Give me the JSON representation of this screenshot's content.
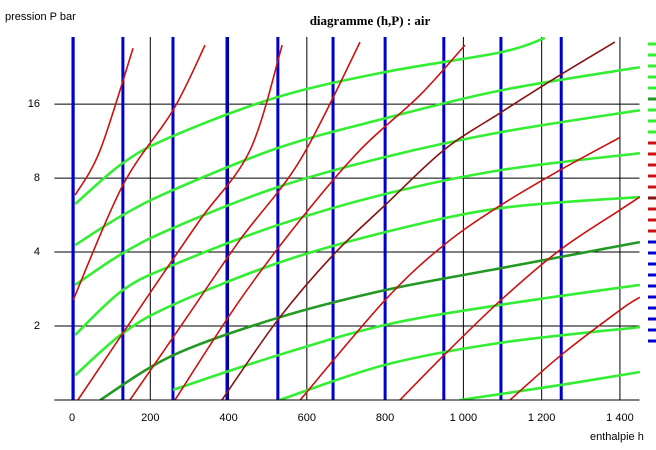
{
  "chart_data": {
    "type": "line",
    "title": "diagramme (h,P) : air",
    "y_label": "pression  P bar",
    "x_label": "enthalpie  h",
    "xlim": [
      -45,
      1450
    ],
    "ylim": [
      1,
      30
    ],
    "yscale": "log",
    "grid": true,
    "legend": "right",
    "xticks": [
      0,
      200,
      400,
      600,
      800,
      {
        "value": 1000,
        "label": "1 000"
      },
      {
        "value": 1200,
        "label": "1 200"
      },
      {
        "value": 1400,
        "label": "1 400"
      }
    ],
    "yticks": [
      2,
      4,
      8,
      16
    ],
    "vertical_lines": {
      "color": "#0000cc",
      "values": [
        3,
        130,
        258,
        396,
        526,
        667,
        800,
        950,
        1096,
        1250
      ]
    },
    "series": [
      {
        "color": "#33ee33",
        "x": [
          8,
          130,
          258,
          526,
          800,
          1096,
          1208
        ],
        "values": [
          6.27,
          9.21,
          11.86,
          17.1,
          21.6,
          26.0,
          29.7
        ]
      },
      {
        "color": "#33ee33",
        "x": [
          8,
          130,
          258,
          526,
          800,
          1096,
          1451
        ],
        "values": [
          4.27,
          5.66,
          7.15,
          10.6,
          14.0,
          18.2,
          22.6
        ]
      },
      {
        "color": "#33ee33",
        "x": [
          8,
          130,
          258,
          526,
          800,
          1096,
          1451
        ],
        "values": [
          2.94,
          3.96,
          5.01,
          7.35,
          9.74,
          12.3,
          15.1
        ]
      },
      {
        "color": "#33ee33",
        "x": [
          8,
          130,
          258,
          526,
          800,
          1096,
          1451
        ],
        "values": [
          1.84,
          2.8,
          3.54,
          5.15,
          6.89,
          8.62,
          10.1
        ]
      },
      {
        "color": "#33ee33",
        "x": [
          8,
          130,
          258,
          526,
          800,
          1096,
          1451
        ],
        "values": [
          1.26,
          1.87,
          2.44,
          3.61,
          4.82,
          6.04,
          6.7
        ]
      },
      {
        "color": "#229922",
        "x": [
          72,
          258,
          526,
          800,
          1096,
          1451
        ],
        "values": [
          1.0,
          1.52,
          2.16,
          2.8,
          3.44,
          4.39
        ]
      },
      {
        "color": "#33ee33",
        "x": [
          258,
          526,
          800,
          1096,
          1451
        ],
        "values": [
          1.1,
          1.52,
          2.02,
          2.44,
          2.94
        ]
      },
      {
        "color": "#33ee33",
        "x": [
          531,
          800,
          1096,
          1451
        ],
        "values": [
          1.0,
          1.39,
          1.71,
          1.98
        ]
      },
      {
        "color": "#33ee33",
        "x": [
          991,
          1247,
          1451
        ],
        "values": [
          1.0,
          1.15,
          1.3
        ]
      },
      {
        "color": "#cc1111",
        "x": [
          8,
          72,
          156
        ],
        "values": [
          6.82,
          10.4,
          27.0
        ]
      },
      {
        "color": "#cc1111",
        "x": [
          3,
          130,
          258,
          340
        ],
        "values": [
          2.55,
          7.49,
          15.1,
          27.8
        ]
      },
      {
        "color": "#cc1111",
        "x": [
          15,
          187,
          327,
          455,
          537
        ],
        "values": [
          1.0,
          2.55,
          5.4,
          10.4,
          27.8
        ]
      },
      {
        "color": "#cc1111",
        "x": [
          148,
          289,
          429,
          583,
          736
        ],
        "values": [
          1.0,
          2.12,
          4.48,
          9.47,
          28.6
        ]
      },
      {
        "color": "#cc1111",
        "x": [
          263,
          429,
          583,
          736,
          889,
          1004
        ],
        "values": [
          1.0,
          2.55,
          5.4,
          10.4,
          17.4,
          27.8
        ]
      },
      {
        "color": "#881111",
        "x": [
          383,
          526,
          667,
          800,
          950,
          1096,
          1247,
          1387
        ],
        "values": [
          1.0,
          2.12,
          3.89,
          6.21,
          10.4,
          14.8,
          21.0,
          28.6
        ]
      },
      {
        "color": "#cc1111",
        "x": [
          583,
          800,
          950,
          1096,
          1247,
          1400
        ],
        "values": [
          1.0,
          2.55,
          4.27,
          6.21,
          8.62,
          11.7
        ]
      },
      {
        "color": "#cc1111",
        "x": [
          838,
          950,
          1096,
          1247,
          1400,
          1451
        ],
        "values": [
          1.0,
          1.52,
          2.55,
          4.08,
          5.93,
          6.7
        ]
      },
      {
        "color": "#cc1111",
        "x": [
          1119,
          1249,
          1400,
          1451
        ],
        "values": [
          1.0,
          1.52,
          2.32,
          2.62
        ]
      }
    ]
  }
}
